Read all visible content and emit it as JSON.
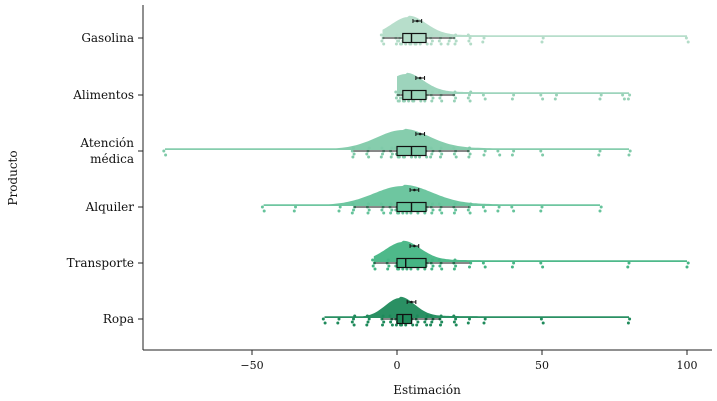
{
  "chart_data": {
    "type": "raincloud",
    "xlabel": "Estimación",
    "ylabel": "Producto",
    "xlim": [
      -87,
      109
    ],
    "xticks": [
      -50,
      0,
      50,
      100
    ],
    "xtick_labels": [
      "−50",
      "0",
      "50",
      "100"
    ],
    "categories": [
      {
        "label_lines": [
          "Gasolina"
        ],
        "color": "#b3dcc8",
        "range": [
          -5,
          100
        ],
        "density_peak": 4,
        "density_width": 6,
        "box": {
          "q1": 2,
          "median": 5,
          "q3": 10,
          "whisker_low": -5,
          "whisker_high": 20
        },
        "mean": 7,
        "mean_ci": [
          5.5,
          8.5
        ],
        "points": [
          -5,
          0,
          1,
          2,
          3,
          4,
          5,
          6,
          7,
          8,
          10,
          12,
          15,
          18,
          20,
          25,
          30,
          50,
          100
        ]
      },
      {
        "label_lines": [
          "Alimentos"
        ],
        "color": "#98d2b8",
        "range": [
          0,
          80
        ],
        "density_peak": 3,
        "density_width": 6,
        "box": {
          "q1": 2,
          "median": 5,
          "q3": 10,
          "whisker_low": 0,
          "whisker_high": 20
        },
        "mean": 8,
        "mean_ci": [
          6.5,
          9.5
        ],
        "points": [
          0,
          1,
          2,
          3,
          4,
          5,
          6,
          8,
          10,
          12,
          15,
          20,
          25,
          30,
          40,
          50,
          55,
          70,
          78,
          80
        ]
      },
      {
        "label_lines": [
          "Atención",
          "médica"
        ],
        "color": "#7fcaa9",
        "range": [
          -80,
          80
        ],
        "density_peak": 2,
        "density_width": 9,
        "box": {
          "q1": 0,
          "median": 5,
          "q3": 10,
          "whisker_low": -15,
          "whisker_high": 25
        },
        "mean": 8,
        "mean_ci": [
          6.5,
          9.5
        ],
        "points": [
          -80,
          -15,
          -10,
          -5,
          -2,
          0,
          1,
          2,
          3,
          5,
          6,
          8,
          10,
          12,
          15,
          20,
          25,
          30,
          35,
          40,
          50,
          70,
          80
        ]
      },
      {
        "label_lines": [
          "Alquiler"
        ],
        "color": "#66c39b",
        "range": [
          -46,
          70
        ],
        "density_peak": 2,
        "density_width": 10,
        "box": {
          "q1": 0,
          "median": 5,
          "q3": 10,
          "whisker_low": -15,
          "whisker_high": 25
        },
        "mean": 6,
        "mean_ci": [
          4.5,
          7.5
        ],
        "points": [
          -46,
          -35,
          -20,
          -15,
          -10,
          -5,
          -2,
          0,
          1,
          2,
          3,
          5,
          7,
          10,
          12,
          15,
          20,
          25,
          30,
          35,
          40,
          50,
          70
        ]
      },
      {
        "label_lines": [
          "Transporte"
        ],
        "color": "#45b584",
        "range": [
          -8,
          100
        ],
        "density_peak": 2,
        "density_width": 6,
        "box": {
          "q1": 0,
          "median": 3,
          "q3": 10,
          "whisker_low": -8,
          "whisker_high": 25
        },
        "mean": 6,
        "mean_ci": [
          4.5,
          7.5
        ],
        "points": [
          -8,
          -3,
          0,
          1,
          2,
          3,
          5,
          7,
          10,
          12,
          15,
          20,
          25,
          30,
          40,
          50,
          80,
          100
        ]
      },
      {
        "label_lines": [
          "Ropa"
        ],
        "color": "#1f8a5b",
        "range": [
          -25,
          80
        ],
        "density_peak": 1,
        "density_width": 5,
        "box": {
          "q1": 0,
          "median": 2,
          "q3": 5,
          "whisker_low": -5,
          "whisker_high": 15
        },
        "mean": 5,
        "mean_ci": [
          3.5,
          6.5
        ],
        "points": [
          -25,
          -20,
          -15,
          -10,
          -5,
          -2,
          0,
          1,
          2,
          3,
          5,
          7,
          10,
          12,
          15,
          20,
          25,
          30,
          50,
          80
        ]
      }
    ]
  }
}
